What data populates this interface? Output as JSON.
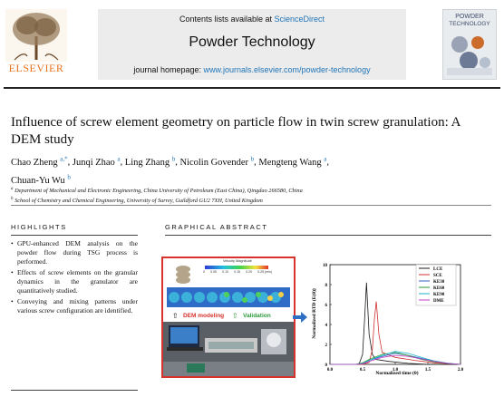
{
  "header": {
    "publisher": "ELSEVIER",
    "contents_prefix": "Contents lists available at ",
    "contents_link": "ScienceDirect",
    "journal_name": "Powder Technology",
    "homepage_prefix": "journal homepage: ",
    "homepage_link": "www.journals.elsevier.com/powder-technology",
    "cover_title_1": "POWDER",
    "cover_title_2": "TECHNOLOGY"
  },
  "article": {
    "title": "Influence of screw element geometry on particle flow in twin screw granulation: A DEM study",
    "authors": [
      {
        "name": "Chao Zheng",
        "sup": "a,*"
      },
      {
        "name": "Junqi Zhao",
        "sup": "a"
      },
      {
        "name": "Ling Zhang",
        "sup": "b"
      },
      {
        "name": "Nicolin Govender",
        "sup": "b"
      },
      {
        "name": "Mengteng Wang",
        "sup": "a"
      },
      {
        "name": "Chuan-Yu Wu",
        "sup": "b"
      }
    ],
    "affiliations": [
      {
        "mark": "a",
        "text": "Department of Mechanical and Electronic Engineering, China University of Petroleum (East China), Qingdao 266580, China"
      },
      {
        "mark": "b",
        "text": "School of Chemistry and Chemical Engineering, University of Surrey, Guildford GU2 7XH, United Kingdom"
      }
    ]
  },
  "highlights": {
    "heading": "HIGHLIGHTS",
    "items": [
      "GPU-enhanced DEM analysis on the powder flow during TSG process is performed.",
      "Effects of screw elements on the granular dynamics in the granulator are quantitatively studied.",
      "Conveying and mixing patterns under various screw configuration are identified."
    ]
  },
  "graphical_abstract": {
    "heading": "GRAPHICAL ABSTRACT",
    "colorbar_title": "Velocity Magnitude",
    "colorbar_ticks": [
      "0",
      "0.05",
      "0.10",
      "0.15",
      "0.20",
      "0.25 (m/s)"
    ],
    "dem_label": "DEM modeling",
    "validation_label": "Validation"
  },
  "chart_data": {
    "type": "line",
    "xlabel": "Normalized time (θ)",
    "ylabel": "Normalized RTD (E(θ))",
    "xlim": [
      0,
      2.0
    ],
    "ylim": [
      0,
      10
    ],
    "xticks": [
      "0.0",
      "0.5",
      "1.0",
      "1.5",
      "2.0"
    ],
    "yticks": [
      "0",
      "2",
      "4",
      "6",
      "8",
      "10"
    ],
    "legend_position": "top-right",
    "series": [
      {
        "name": "LCE",
        "color": "#1a1a1a",
        "x": [
          0,
          0.4,
          0.45,
          0.5,
          0.53,
          0.56,
          0.6,
          0.65,
          0.7,
          0.9,
          1.2,
          1.5,
          2.0
        ],
        "y": [
          0,
          0,
          0.1,
          1.0,
          4.5,
          8.2,
          3.0,
          1.0,
          0.5,
          0.3,
          0.1,
          0,
          0
        ]
      },
      {
        "name": "SCE",
        "color": "#d03030",
        "x": [
          0,
          0.5,
          0.6,
          0.65,
          0.68,
          0.71,
          0.75,
          0.8,
          1.0,
          1.3,
          1.6,
          2.0
        ],
        "y": [
          0,
          0,
          0.2,
          1.5,
          4.5,
          6.3,
          3.0,
          1.2,
          0.7,
          0.4,
          0.15,
          0
        ]
      },
      {
        "name": "KE30",
        "color": "#2d62c8",
        "x": [
          0,
          0.4,
          0.5,
          0.6,
          0.8,
          1.0,
          1.2,
          1.4,
          1.6,
          1.8,
          2.0
        ],
        "y": [
          0,
          0,
          0.1,
          0.4,
          0.8,
          1.1,
          0.9,
          0.6,
          0.3,
          0.1,
          0
        ]
      },
      {
        "name": "KE60",
        "color": "#2a9a3a",
        "x": [
          0,
          0.4,
          0.5,
          0.6,
          0.8,
          1.0,
          1.2,
          1.4,
          1.6,
          1.8,
          2.0
        ],
        "y": [
          0,
          0,
          0.15,
          0.5,
          1.0,
          1.2,
          0.9,
          0.5,
          0.25,
          0.1,
          0
        ]
      },
      {
        "name": "KE90",
        "color": "#1ab0c8",
        "x": [
          0,
          0.4,
          0.5,
          0.6,
          0.8,
          1.0,
          1.2,
          1.4,
          1.6,
          1.8,
          2.0
        ],
        "y": [
          0,
          0,
          0.1,
          0.4,
          0.9,
          1.3,
          1.1,
          0.7,
          0.35,
          0.12,
          0
        ]
      },
      {
        "name": "DME",
        "color": "#c040c0",
        "x": [
          0,
          0.4,
          0.5,
          0.6,
          0.8,
          1.0,
          1.2,
          1.4,
          1.6,
          1.8,
          2.0
        ],
        "y": [
          0,
          0,
          0.05,
          0.3,
          0.7,
          0.9,
          0.8,
          0.55,
          0.3,
          0.1,
          0
        ]
      }
    ]
  }
}
